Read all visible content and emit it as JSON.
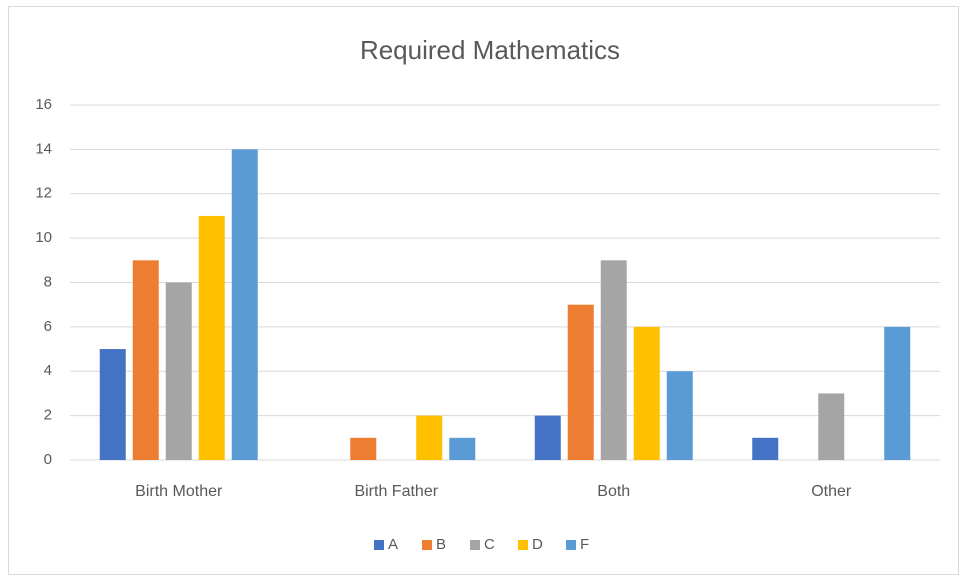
{
  "chart_data": {
    "type": "bar",
    "title": "Required Mathematics",
    "categories": [
      "Birth Mother",
      "Birth Father",
      "Both",
      "Other"
    ],
    "series": [
      {
        "name": "A",
        "color": "#4472c4",
        "values": [
          5,
          0,
          2,
          1
        ]
      },
      {
        "name": "B",
        "color": "#ed7d31",
        "values": [
          9,
          1,
          7,
          0
        ]
      },
      {
        "name": "C",
        "color": "#a5a5a5",
        "values": [
          8,
          0,
          9,
          3
        ]
      },
      {
        "name": "D",
        "color": "#ffc000",
        "values": [
          11,
          2,
          6,
          0
        ]
      },
      {
        "name": "F",
        "color": "#5b9bd5",
        "values": [
          14,
          1,
          4,
          6
        ]
      }
    ],
    "ylim": [
      0,
      16
    ],
    "yticks": [
      0,
      2,
      4,
      6,
      8,
      10,
      12,
      14,
      16
    ],
    "grid": true,
    "legend": "bottom"
  }
}
